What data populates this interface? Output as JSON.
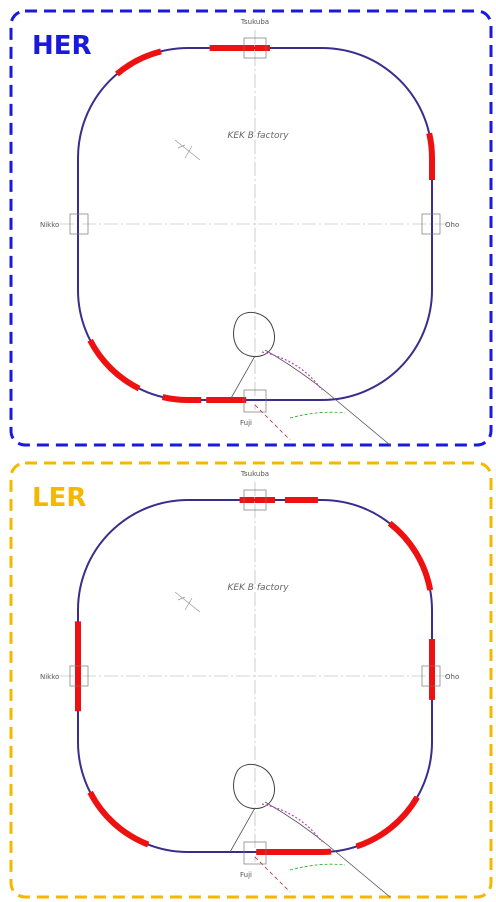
{
  "panels": [
    {
      "label": "HER",
      "top": "Tsukuba",
      "left": "Nikko",
      "right": "Oho",
      "bottom": "Fuji",
      "center": "KEK B factory"
    },
    {
      "label": "LER",
      "top": "Tsukuba",
      "left": "Nikko",
      "right": "Oho",
      "bottom": "Fuji",
      "center": "KEK B factory"
    }
  ]
}
